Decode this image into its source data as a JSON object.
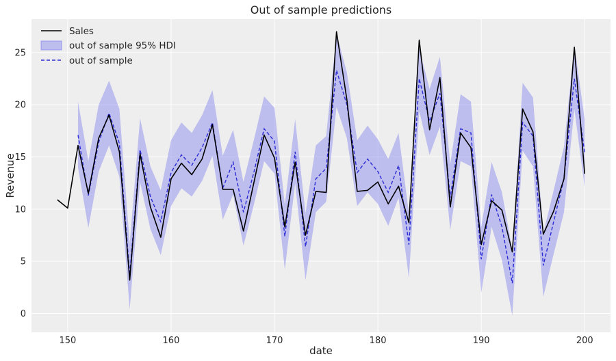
{
  "chart_data": {
    "type": "line",
    "title": "Out of sample predictions",
    "xlabel": "date",
    "ylabel": "Revenue",
    "xlim": [
      146.5,
      202.5
    ],
    "ylim": [
      -1.8,
      28.2
    ],
    "xticks": [
      150,
      160,
      170,
      180,
      190,
      200
    ],
    "yticks": [
      0,
      5,
      10,
      15,
      20,
      25
    ],
    "grid": true,
    "legend_position": "top-left",
    "colors": {
      "background": "#eeeeee",
      "sales": "#000000",
      "prediction": "#2b2bd4",
      "hdi": "#8080ee"
    },
    "series": [
      {
        "name": "Sales",
        "style": "solid",
        "x": [
          149,
          150,
          151,
          152,
          153,
          154,
          155,
          156,
          157,
          158,
          159,
          160,
          161,
          162,
          163,
          164,
          165,
          166,
          167,
          168,
          169,
          170,
          171,
          172,
          173,
          174,
          175,
          176,
          177,
          178,
          179,
          180,
          181,
          182,
          183,
          184,
          185,
          186,
          187,
          188,
          189,
          190,
          191,
          192,
          193,
          194,
          195,
          196,
          197,
          198,
          199,
          200
        ],
        "values": [
          10.9,
          10.1,
          16.1,
          11.5,
          16.8,
          19.0,
          15.5,
          3.2,
          15.3,
          10.2,
          7.3,
          12.9,
          14.4,
          13.3,
          14.8,
          18.1,
          11.9,
          11.9,
          7.9,
          12.5,
          17.1,
          14.9,
          8.3,
          14.5,
          7.5,
          11.7,
          11.6,
          27.0,
          20.5,
          11.7,
          11.8,
          12.6,
          10.5,
          12.2,
          8.7,
          26.2,
          17.6,
          22.6,
          10.2,
          17.3,
          15.9,
          6.6,
          10.8,
          9.9,
          5.9,
          19.6,
          17.4,
          7.6,
          9.8,
          12.9,
          25.5,
          13.4
        ]
      },
      {
        "name": "out of sample",
        "style": "dashed",
        "x": [
          151,
          152,
          153,
          154,
          155,
          156,
          157,
          158,
          159,
          160,
          161,
          162,
          163,
          164,
          165,
          166,
          167,
          168,
          169,
          170,
          171,
          172,
          173,
          174,
          175,
          176,
          177,
          178,
          179,
          180,
          181,
          182,
          183,
          184,
          185,
          186,
          187,
          188,
          189,
          190,
          191,
          192,
          193,
          194,
          195,
          196,
          197,
          198,
          199,
          200
        ],
        "values": [
          17.1,
          11.3,
          16.4,
          19.2,
          16.3,
          3.7,
          15.7,
          11.2,
          8.8,
          13.5,
          15.2,
          14.2,
          15.9,
          18.3,
          12.0,
          14.5,
          9.7,
          13.5,
          17.7,
          16.5,
          7.4,
          15.5,
          6.4,
          12.9,
          13.9,
          23.3,
          20.0,
          13.5,
          14.8,
          13.6,
          11.6,
          14.2,
          6.6,
          22.5,
          18.4,
          21.1,
          11.1,
          17.7,
          17.3,
          5.2,
          11.4,
          8.3,
          2.9,
          18.3,
          17.0,
          4.6,
          8.8,
          12.9,
          22.5,
          15.4
        ]
      }
    ],
    "hdi": {
      "name": "out of sample 95% HDI",
      "x": [
        151,
        152,
        153,
        154,
        155,
        156,
        157,
        158,
        159,
        160,
        161,
        162,
        163,
        164,
        165,
        166,
        167,
        168,
        169,
        170,
        171,
        172,
        173,
        174,
        175,
        176,
        177,
        178,
        179,
        180,
        181,
        182,
        183,
        184,
        185,
        186,
        187,
        188,
        189,
        190,
        191,
        192,
        193,
        194,
        195,
        196,
        197,
        198,
        199,
        200
      ],
      "upper": [
        20.3,
        14.6,
        20.0,
        22.3,
        19.6,
        6.7,
        18.7,
        14.1,
        11.8,
        16.6,
        18.3,
        17.3,
        19.0,
        21.4,
        15.1,
        17.6,
        12.6,
        16.6,
        20.8,
        19.7,
        10.4,
        18.6,
        9.6,
        16.1,
        17.0,
        26.8,
        23.1,
        16.6,
        18.0,
        16.7,
        14.8,
        17.3,
        9.6,
        25.4,
        21.5,
        24.6,
        14.3,
        21.0,
        20.3,
        8.3,
        14.5,
        11.6,
        6.1,
        22.1,
        20.7,
        7.7,
        11.8,
        16.0,
        25.7,
        18.6
      ],
      "lower": [
        14.0,
        8.2,
        13.6,
        16.1,
        13.1,
        0.4,
        12.6,
        8.1,
        5.6,
        10.3,
        12.0,
        11.2,
        12.7,
        15.1,
        9.0,
        11.4,
        6.5,
        10.4,
        14.6,
        13.4,
        4.2,
        12.5,
        3.2,
        9.7,
        10.7,
        19.8,
        16.8,
        10.3,
        11.6,
        10.5,
        8.4,
        11.1,
        3.4,
        19.4,
        15.2,
        17.9,
        8.0,
        14.6,
        14.1,
        2.0,
        8.3,
        5.1,
        -0.2,
        15.6,
        14.1,
        1.6,
        5.7,
        9.7,
        19.6,
        12.1
      ]
    }
  }
}
